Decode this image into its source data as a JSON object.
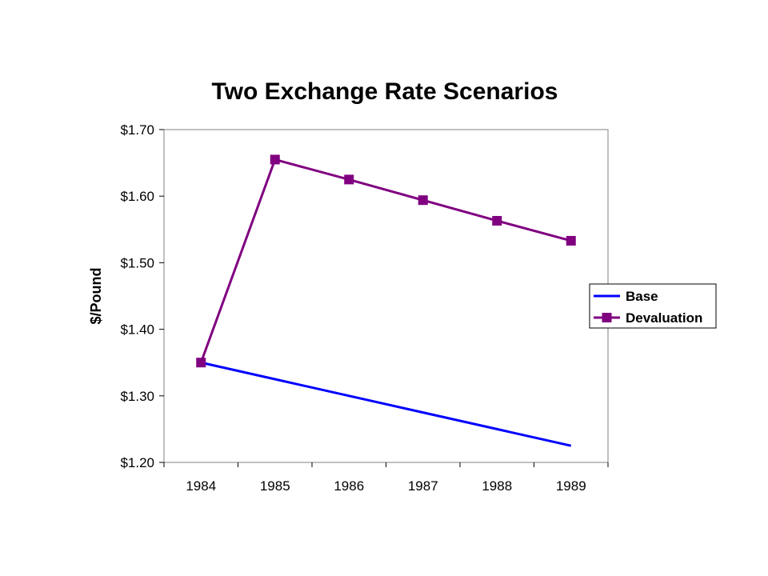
{
  "chart_data": {
    "type": "line",
    "title": "Two Exchange Rate Scenarios",
    "xlabel": "",
    "ylabel": "$/Pound",
    "categories": [
      "1984",
      "1985",
      "1986",
      "1987",
      "1988",
      "1989"
    ],
    "y_tick_labels": [
      "$1.20",
      "$1.30",
      "$1.40",
      "$1.50",
      "$1.60",
      "$1.70"
    ],
    "y_ticks": [
      1.2,
      1.3,
      1.4,
      1.5,
      1.6,
      1.7
    ],
    "ylim": [
      1.2,
      1.7
    ],
    "grid": false,
    "legend_position": "right",
    "series": [
      {
        "name": "Base",
        "color": "#0000ff",
        "marker": "none",
        "values": [
          1.35,
          1.325,
          1.3,
          1.275,
          1.25,
          1.225
        ]
      },
      {
        "name": "Devaluation",
        "color": "#800080",
        "marker": "square",
        "values": [
          1.35,
          1.655,
          1.625,
          1.594,
          1.563,
          1.533
        ]
      }
    ]
  }
}
